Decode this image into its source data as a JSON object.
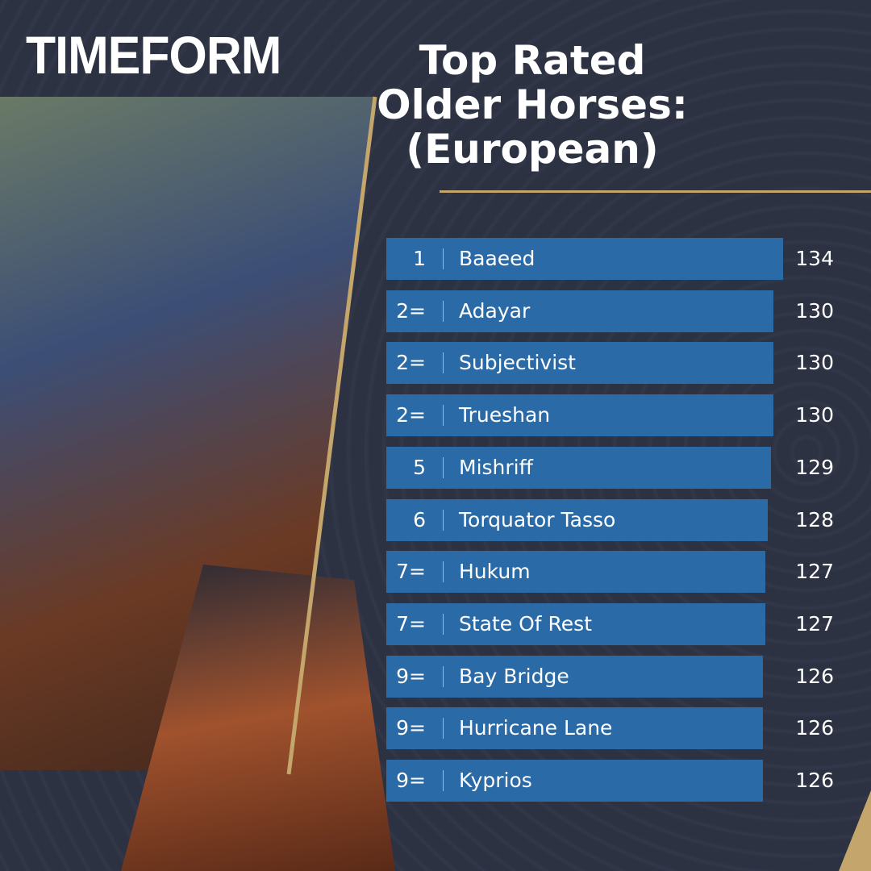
{
  "brand": "TIMEFORM",
  "chart_data": {
    "type": "bar",
    "title": "Top Rated Older Horses: (European)",
    "categories": [
      "Baaeed",
      "Adayar",
      "Subjectivist",
      "Trueshan",
      "Mishriff",
      "Torquator Tasso",
      "Hukum",
      "State Of Rest",
      "Bay Bridge",
      "Hurricane Lane",
      "Kyprios"
    ],
    "ranks": [
      "1",
      "2=",
      "2=",
      "2=",
      "5",
      "6",
      "7=",
      "7=",
      "9=",
      "9=",
      "9="
    ],
    "values": [
      134,
      130,
      130,
      130,
      129,
      128,
      127,
      127,
      126,
      126,
      126
    ],
    "color": "#2a6aa6"
  }
}
